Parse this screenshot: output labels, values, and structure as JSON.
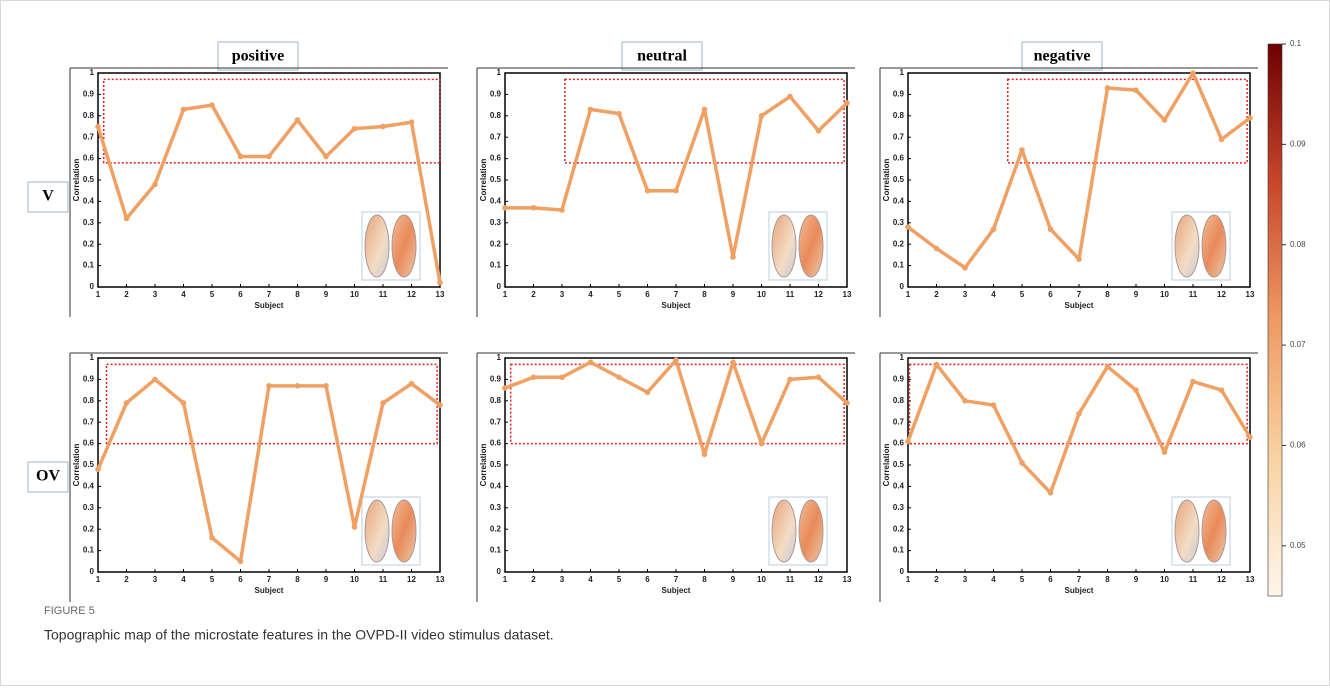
{
  "columns": [
    "positive",
    "neutral",
    "negative"
  ],
  "rows": [
    "V",
    "OV"
  ],
  "colorbar": {
    "lim": [
      0.045,
      0.1
    ],
    "ticks": [
      0.1,
      0.09,
      0.08,
      0.07,
      0.06,
      0.05
    ],
    "colors": [
      "#fdf6ea",
      "#f9d3a3",
      "#ee9a63",
      "#c8462b",
      "#6e0000"
    ]
  },
  "caption": {
    "label": "FIGURE 5",
    "text": "Topographic map of the microstate features in the OVPD-II video stimulus dataset."
  },
  "chart_data": [
    {
      "type": "line",
      "xlabel": "Subject",
      "ylabel": "Correlation",
      "x": [
        1,
        2,
        3,
        4,
        5,
        6,
        7,
        8,
        9,
        10,
        11,
        12,
        13
      ],
      "values": [
        0.75,
        0.32,
        0.48,
        0.83,
        0.85,
        0.61,
        0.61,
        0.78,
        0.61,
        0.74,
        0.75,
        0.77,
        0.02
      ],
      "color": "#f0a062",
      "xlim": [
        1,
        13
      ],
      "ylim": [
        0,
        1
      ],
      "xticks": [
        1,
        2,
        3,
        4,
        5,
        6,
        7,
        8,
        9,
        10,
        11,
        12,
        13
      ],
      "yticks": [
        0,
        0.1,
        0.2,
        0.3,
        0.4,
        0.5,
        0.6,
        0.7,
        0.8,
        0.9,
        1
      ],
      "highlight": {
        "xlim": [
          1.2,
          13
        ],
        "ylim": [
          0.58,
          0.97
        ],
        "color": "#e02020"
      }
    },
    {
      "type": "line",
      "xlabel": "Subject",
      "ylabel": "Correlation",
      "x": [
        1,
        2,
        3,
        4,
        5,
        6,
        7,
        8,
        9,
        10,
        11,
        12,
        13
      ],
      "values": [
        0.37,
        0.37,
        0.36,
        0.83,
        0.81,
        0.45,
        0.45,
        0.83,
        0.14,
        0.8,
        0.89,
        0.73,
        0.86
      ],
      "color": "#f0a062",
      "xlim": [
        1,
        13
      ],
      "ylim": [
        0,
        1
      ],
      "xticks": [
        1,
        2,
        3,
        4,
        5,
        6,
        7,
        8,
        9,
        10,
        11,
        12,
        13
      ],
      "yticks": [
        0,
        0.1,
        0.2,
        0.3,
        0.4,
        0.5,
        0.6,
        0.7,
        0.8,
        0.9,
        1
      ],
      "highlight": {
        "xlim": [
          3.1,
          12.9
        ],
        "ylim": [
          0.58,
          0.97
        ],
        "color": "#e02020"
      }
    },
    {
      "type": "line",
      "xlabel": "Subject",
      "ylabel": "Correlation",
      "x": [
        1,
        2,
        3,
        4,
        5,
        6,
        7,
        8,
        9,
        10,
        11,
        12,
        13
      ],
      "values": [
        0.28,
        0.18,
        0.09,
        0.27,
        0.64,
        0.27,
        0.13,
        0.93,
        0.92,
        0.78,
        1.0,
        0.69,
        0.79
      ],
      "color": "#f0a062",
      "xlim": [
        1,
        13
      ],
      "ylim": [
        0,
        1
      ],
      "xticks": [
        1,
        2,
        3,
        4,
        5,
        6,
        7,
        8,
        9,
        10,
        11,
        12,
        13
      ],
      "yticks": [
        0,
        0.1,
        0.2,
        0.3,
        0.4,
        0.5,
        0.6,
        0.7,
        0.8,
        0.9,
        1
      ],
      "highlight": {
        "xlim": [
          4.5,
          12.9
        ],
        "ylim": [
          0.58,
          0.97
        ],
        "color": "#e02020"
      }
    },
    {
      "type": "line",
      "xlabel": "Subject",
      "ylabel": "Correlation",
      "x": [
        1,
        2,
        3,
        4,
        5,
        6,
        7,
        8,
        9,
        10,
        11,
        12,
        13
      ],
      "values": [
        0.48,
        0.79,
        0.9,
        0.79,
        0.16,
        0.05,
        0.87,
        0.87,
        0.87,
        0.21,
        0.79,
        0.88,
        0.78
      ],
      "color": "#f0a062",
      "xlim": [
        1,
        13
      ],
      "ylim": [
        0,
        1
      ],
      "xticks": [
        1,
        2,
        3,
        4,
        5,
        6,
        7,
        8,
        9,
        10,
        11,
        12,
        13
      ],
      "yticks": [
        0,
        0.1,
        0.2,
        0.3,
        0.4,
        0.5,
        0.6,
        0.7,
        0.8,
        0.9,
        1
      ],
      "highlight": {
        "xlim": [
          1.3,
          12.9
        ],
        "ylim": [
          0.6,
          0.97
        ],
        "color": "#e02020"
      }
    },
    {
      "type": "line",
      "xlabel": "Subject",
      "ylabel": "Correlation",
      "x": [
        1,
        2,
        3,
        4,
        5,
        6,
        7,
        8,
        9,
        10,
        11,
        12,
        13
      ],
      "values": [
        0.86,
        0.91,
        0.91,
        0.98,
        0.91,
        0.84,
        0.99,
        0.55,
        0.98,
        0.6,
        0.9,
        0.91,
        0.79
      ],
      "color": "#f0a062",
      "xlim": [
        1,
        13
      ],
      "ylim": [
        0,
        1
      ],
      "xticks": [
        1,
        2,
        3,
        4,
        5,
        6,
        7,
        8,
        9,
        10,
        11,
        12,
        13
      ],
      "yticks": [
        0,
        0.1,
        0.2,
        0.3,
        0.4,
        0.5,
        0.6,
        0.7,
        0.8,
        0.9,
        1
      ],
      "highlight": {
        "xlim": [
          1.2,
          12.9
        ],
        "ylim": [
          0.6,
          0.97
        ],
        "color": "#e02020"
      }
    },
    {
      "type": "line",
      "xlabel": "Subject",
      "ylabel": "Correlation",
      "x": [
        1,
        2,
        3,
        4,
        5,
        6,
        7,
        8,
        9,
        10,
        11,
        12,
        13
      ],
      "values": [
        0.61,
        0.97,
        0.8,
        0.78,
        0.51,
        0.37,
        0.74,
        0.96,
        0.85,
        0.56,
        0.89,
        0.85,
        0.63
      ],
      "color": "#f0a062",
      "xlim": [
        1,
        13
      ],
      "ylim": [
        0,
        1
      ],
      "xticks": [
        1,
        2,
        3,
        4,
        5,
        6,
        7,
        8,
        9,
        10,
        11,
        12,
        13
      ],
      "yticks": [
        0,
        0.1,
        0.2,
        0.3,
        0.4,
        0.5,
        0.6,
        0.7,
        0.8,
        0.9,
        1
      ],
      "highlight": {
        "xlim": [
          1.05,
          12.9
        ],
        "ylim": [
          0.6,
          0.97
        ],
        "color": "#e02020"
      }
    }
  ]
}
